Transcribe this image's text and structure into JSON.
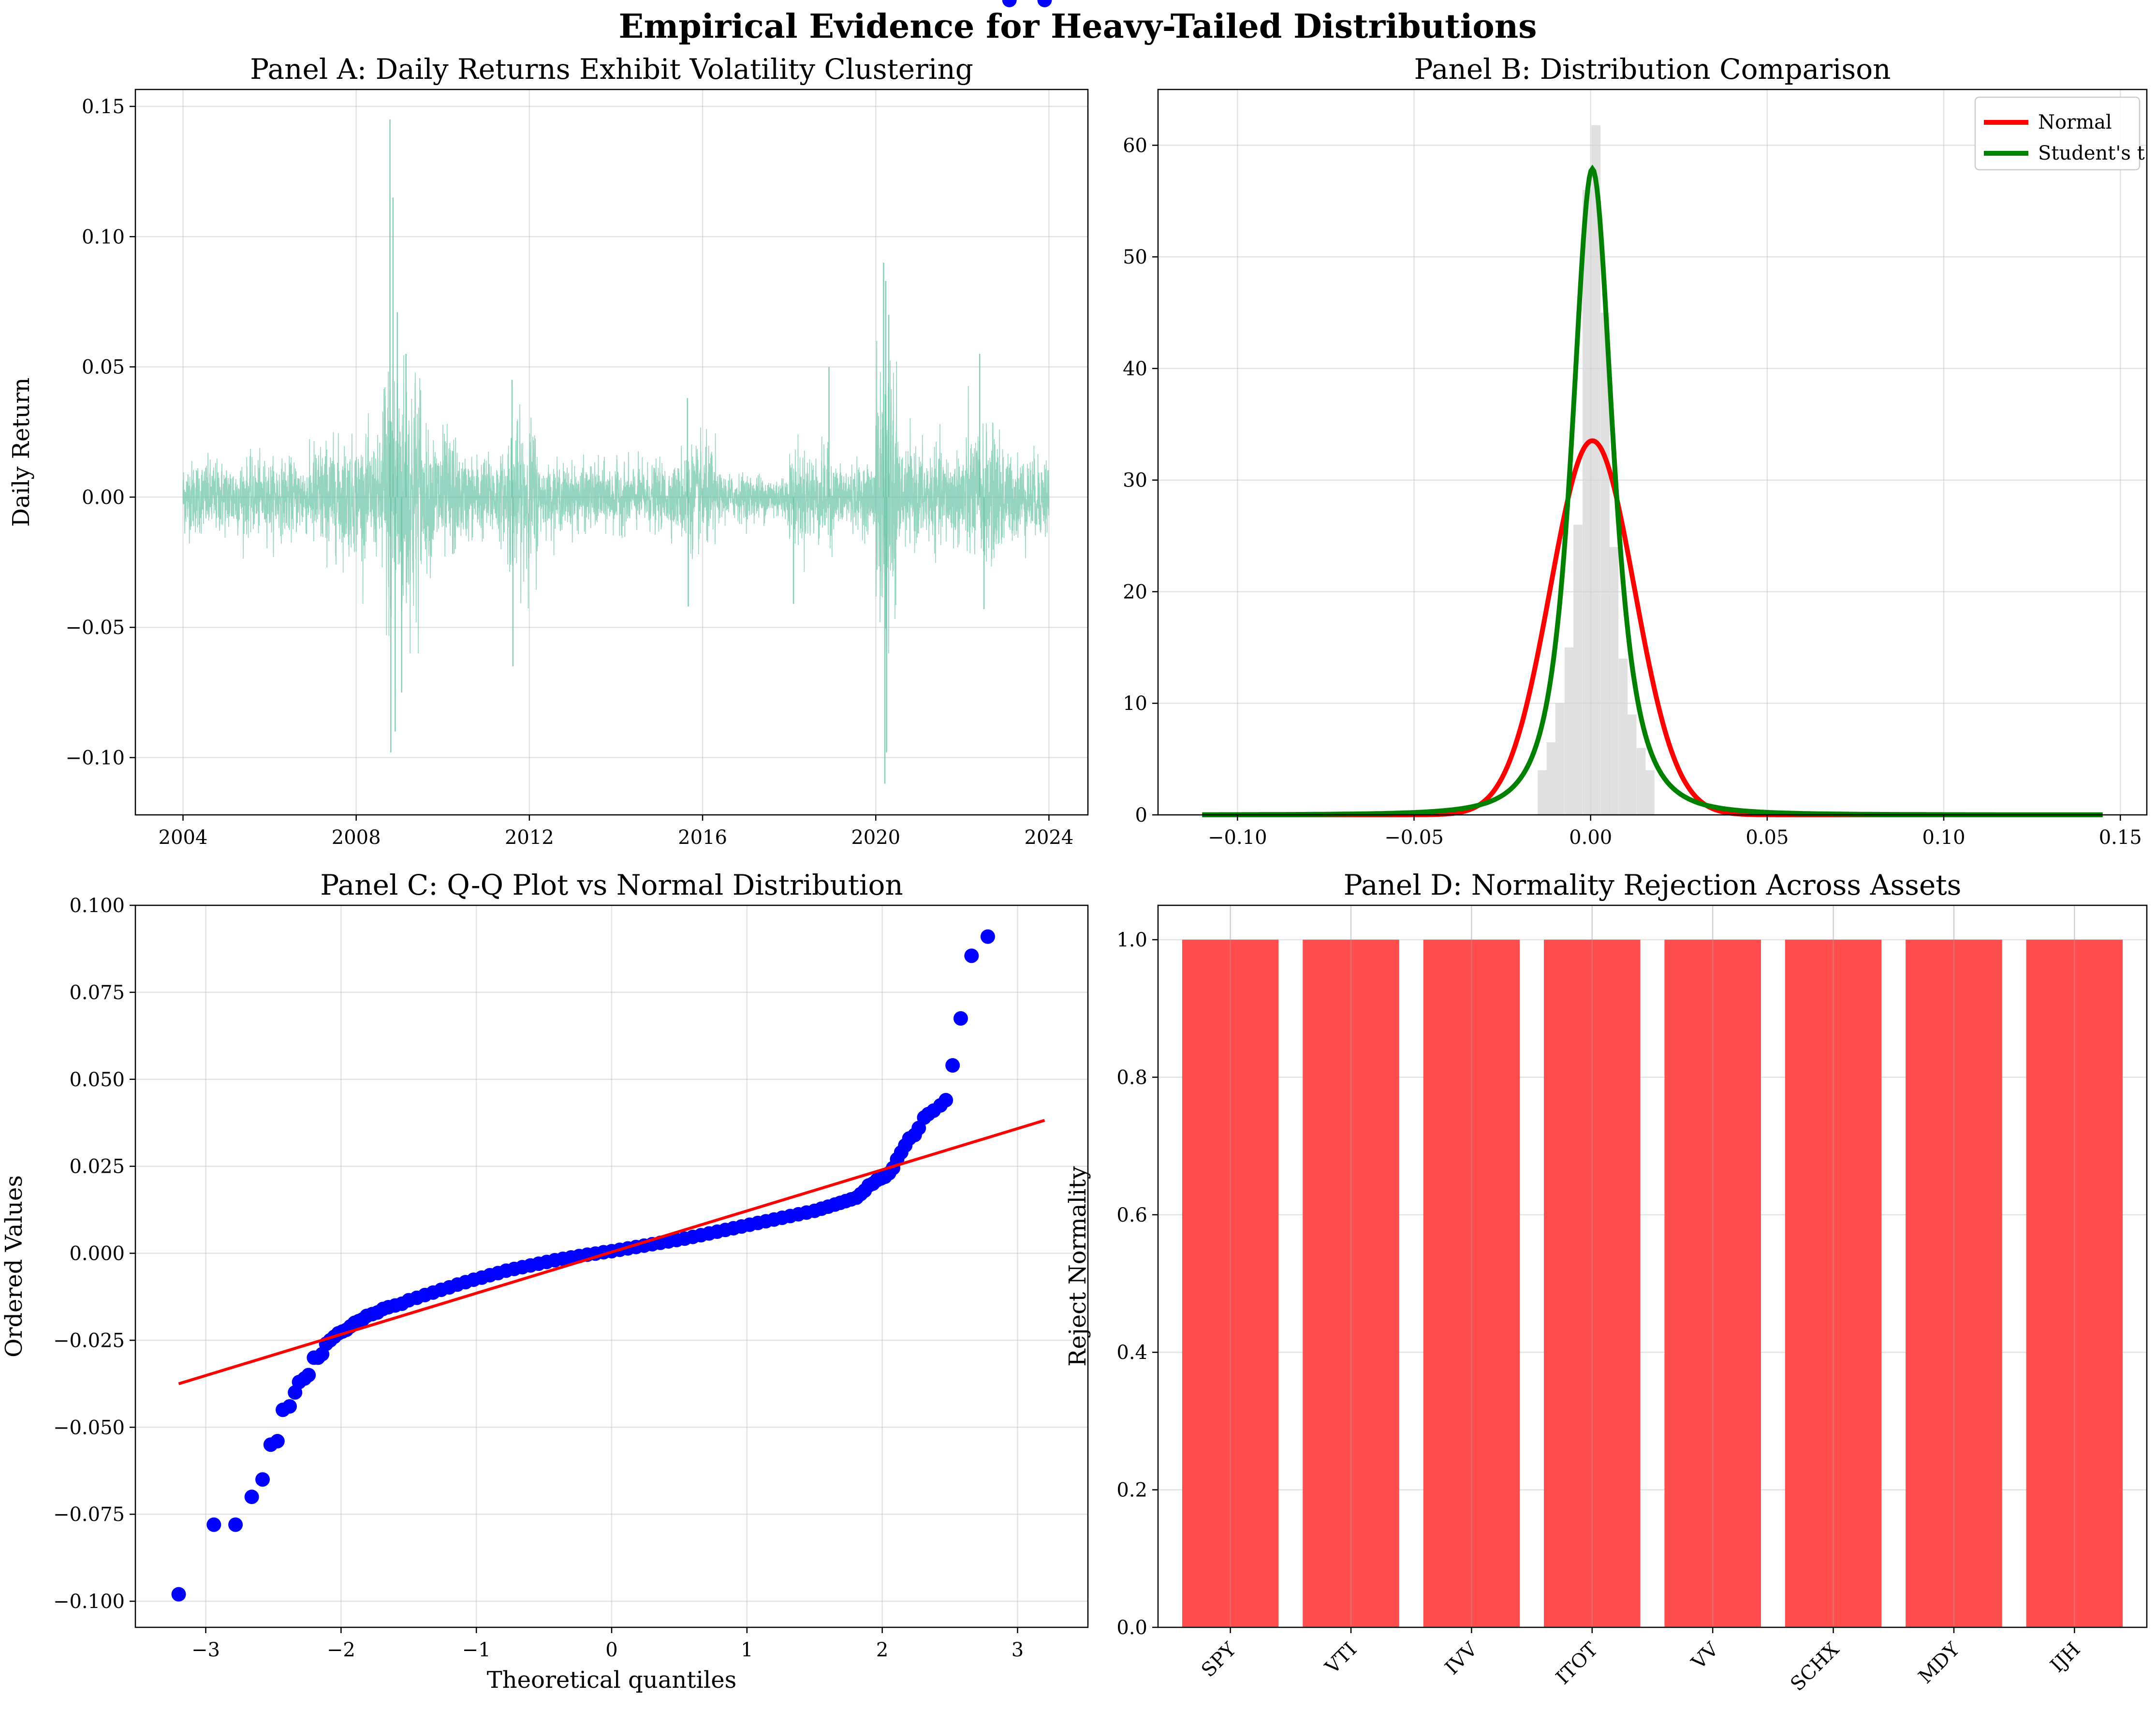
{
  "figure": {
    "title": "Empirical Evidence for Heavy-Tailed Distributions"
  },
  "chart_data": [
    {
      "panel": "A",
      "type": "line",
      "title": "Panel A: Daily Returns Exhibit Volatility Clustering",
      "xlabel": "",
      "ylabel": "Daily Return",
      "xlim": [
        2002.9,
        2024.9
      ],
      "ylim": [
        -0.122,
        0.1565
      ],
      "xticks": [
        2004,
        2008,
        2012,
        2016,
        2020,
        2024
      ],
      "xtick_labels": [
        "2004",
        "2008",
        "2012",
        "2016",
        "2020",
        "2024"
      ],
      "yticks": [
        -0.1,
        -0.05,
        0.0,
        0.05,
        0.1,
        0.15
      ],
      "ytick_labels": [
        "−0.10",
        "−0.05",
        "0.00",
        "0.05",
        "0.10",
        "0.15"
      ],
      "grid": true,
      "color": "#66c2a5",
      "x_range": [
        2004.0,
        2024.0
      ],
      "volatility_regimes": [
        {
          "from": 2004.0,
          "to": 2007.0,
          "vol": 0.008
        },
        {
          "from": 2007.0,
          "to": 2008.6,
          "vol": 0.012
        },
        {
          "from": 2008.6,
          "to": 2009.5,
          "vol": 0.03
        },
        {
          "from": 2009.5,
          "to": 2010.3,
          "vol": 0.014
        },
        {
          "from": 2010.3,
          "to": 2011.5,
          "vol": 0.009
        },
        {
          "from": 2011.5,
          "to": 2012.2,
          "vol": 0.016
        },
        {
          "from": 2012.2,
          "to": 2015.5,
          "vol": 0.007
        },
        {
          "from": 2015.5,
          "to": 2016.3,
          "vol": 0.011
        },
        {
          "from": 2016.3,
          "to": 2018.0,
          "vol": 0.005
        },
        {
          "from": 2018.0,
          "to": 2019.0,
          "vol": 0.01
        },
        {
          "from": 2019.0,
          "to": 2020.0,
          "vol": 0.007
        },
        {
          "from": 2020.0,
          "to": 2020.5,
          "vol": 0.03
        },
        {
          "from": 2020.5,
          "to": 2022.0,
          "vol": 0.01
        },
        {
          "from": 2022.0,
          "to": 2023.0,
          "vol": 0.014
        },
        {
          "from": 2023.0,
          "to": 2024.0,
          "vol": 0.009
        }
      ],
      "extremes": [
        {
          "x": 2008.78,
          "y": 0.145
        },
        {
          "x": 2008.8,
          "y": -0.098
        },
        {
          "x": 2008.85,
          "y": 0.115
        },
        {
          "x": 2008.9,
          "y": -0.09
        },
        {
          "x": 2008.95,
          "y": 0.071
        },
        {
          "x": 2009.05,
          "y": -0.075
        },
        {
          "x": 2009.15,
          "y": 0.055
        },
        {
          "x": 2011.6,
          "y": 0.045
        },
        {
          "x": 2011.62,
          "y": -0.065
        },
        {
          "x": 2015.65,
          "y": 0.038
        },
        {
          "x": 2015.67,
          "y": -0.042
        },
        {
          "x": 2018.1,
          "y": -0.041
        },
        {
          "x": 2018.92,
          "y": 0.05
        },
        {
          "x": 2020.18,
          "y": 0.09
        },
        {
          "x": 2020.21,
          "y": -0.11
        },
        {
          "x": 2020.23,
          "y": 0.083
        },
        {
          "x": 2020.25,
          "y": -0.098
        },
        {
          "x": 2020.3,
          "y": 0.07
        },
        {
          "x": 2022.4,
          "y": 0.055
        },
        {
          "x": 2022.5,
          "y": -0.043
        }
      ]
    },
    {
      "panel": "B",
      "type": "histogram",
      "title": "Panel B: Distribution Comparison",
      "xlabel": "",
      "ylabel": "",
      "xlim": [
        -0.1225,
        0.1575
      ],
      "ylim": [
        0,
        65
      ],
      "xticks": [
        -0.1,
        -0.05,
        0.0,
        0.05,
        0.1,
        0.15
      ],
      "xtick_labels": [
        "−0.10",
        "−0.05",
        "0.00",
        "0.05",
        "0.10",
        "0.15"
      ],
      "yticks": [
        0,
        10,
        20,
        30,
        40,
        50,
        60
      ],
      "ytick_labels": [
        "0",
        "10",
        "20",
        "30",
        "40",
        "50",
        "60"
      ],
      "grid": true,
      "legend_position": "top-right",
      "histogram": {
        "color": "#d3d3d3",
        "bin_width": 0.00255,
        "bins": [
          {
            "x": -0.0137,
            "density": 4.0
          },
          {
            "x": -0.0112,
            "density": 6.5
          },
          {
            "x": -0.0087,
            "density": 10.0
          },
          {
            "x": -0.0061,
            "density": 15.0
          },
          {
            "x": -0.0036,
            "density": 26.0
          },
          {
            "x": -0.001,
            "density": 56.0
          },
          {
            "x": 0.0015,
            "density": 61.8
          },
          {
            "x": 0.0041,
            "density": 45.0
          },
          {
            "x": 0.0066,
            "density": 24.0
          },
          {
            "x": 0.0092,
            "density": 14.0
          },
          {
            "x": 0.0117,
            "density": 9.0
          },
          {
            "x": 0.0143,
            "density": 6.0
          },
          {
            "x": 0.0168,
            "density": 4.0
          }
        ]
      },
      "series": [
        {
          "name": "Normal",
          "color": "#ff0000",
          "dist": "normal",
          "mu": 0.0005,
          "sigma": 0.0119
        },
        {
          "name": "Student's t",
          "color": "#008000",
          "dist": "t",
          "df": 2.3,
          "loc": 0.0005,
          "scale": 0.0062
        }
      ],
      "curve_x_range": [
        -0.11,
        0.145
      ]
    },
    {
      "panel": "C",
      "type": "scatter",
      "title": "Panel C: Q-Q Plot vs Normal Distribution",
      "xlabel": "Theoretical quantiles",
      "ylabel": "Ordered Values",
      "xlim": [
        -3.52,
        3.52
      ],
      "ylim": [
        -0.1075,
        0.1
      ],
      "xticks": [
        -3,
        -2,
        -1,
        0,
        1,
        2,
        3
      ],
      "xtick_labels": [
        "−3",
        "−2",
        "−1",
        "0",
        "1",
        "2",
        "3"
      ],
      "yticks": [
        -0.1,
        -0.075,
        -0.05,
        -0.025,
        0.0,
        0.025,
        0.05,
        0.075,
        0.1
      ],
      "ytick_labels": [
        "−0.100",
        "−0.075",
        "−0.050",
        "−0.025",
        "0.000",
        "0.025",
        "0.050",
        "0.075",
        "0.100"
      ],
      "grid": true,
      "point_color": "#0000ff",
      "line_color": "#ff0000",
      "fit_line": {
        "x": [
          -3.2,
          3.2
        ],
        "y": [
          -0.0375,
          0.0382
        ]
      },
      "points_x": [
        -3.2,
        -2.94,
        -2.78,
        -2.66,
        -2.58,
        -2.52,
        -2.47,
        -2.43,
        -2.38,
        -2.34,
        -2.31,
        -2.27,
        -2.24,
        -2.2,
        -2.17,
        -2.14,
        -2.11,
        -2.08,
        -2.05,
        -2.02,
        -1.99,
        -1.96,
        -1.93,
        -1.9,
        -1.87,
        -1.84,
        -1.81,
        -1.77,
        -1.73,
        -1.69,
        -1.65,
        -1.6,
        -1.55,
        -1.5,
        -1.44,
        -1.38,
        -1.32,
        -1.26,
        -1.2,
        -1.14,
        -1.08,
        -1.02,
        -0.96,
        -0.9,
        -0.84,
        -0.78,
        -0.72,
        -0.66,
        -0.6,
        -0.54,
        -0.48,
        -0.42,
        -0.36,
        -0.3,
        -0.24,
        -0.18,
        -0.12,
        -0.06,
        0.0,
        0.06,
        0.12,
        0.18,
        0.24,
        0.3,
        0.36,
        0.42,
        0.48,
        0.54,
        0.6,
        0.66,
        0.72,
        0.78,
        0.84,
        0.9,
        0.96,
        1.02,
        1.08,
        1.14,
        1.2,
        1.26,
        1.32,
        1.38,
        1.44,
        1.5,
        1.55,
        1.6,
        1.65,
        1.69,
        1.73,
        1.77,
        1.81,
        1.84,
        1.87,
        1.9,
        1.93,
        1.96,
        1.99,
        2.02,
        2.05,
        2.08,
        2.11,
        2.14,
        2.17,
        2.2,
        2.24,
        2.27,
        2.31,
        2.34,
        2.38,
        2.43,
        2.47,
        2.52,
        2.58,
        2.66,
        2.78,
        2.94,
        3.2
      ],
      "points_y": [
        -0.098,
        -0.078,
        -0.078,
        -0.07,
        -0.065,
        -0.055,
        -0.054,
        -0.045,
        -0.044,
        -0.04,
        -0.037,
        -0.036,
        -0.035,
        -0.03,
        -0.03,
        -0.029,
        -0.026,
        -0.025,
        -0.024,
        -0.023,
        -0.0225,
        -0.022,
        -0.021,
        -0.02,
        -0.0195,
        -0.019,
        -0.018,
        -0.0175,
        -0.017,
        -0.016,
        -0.0155,
        -0.015,
        -0.0145,
        -0.0135,
        -0.0128,
        -0.012,
        -0.0113,
        -0.0105,
        -0.0098,
        -0.009,
        -0.0083,
        -0.0076,
        -0.007,
        -0.0063,
        -0.0057,
        -0.005,
        -0.0045,
        -0.004,
        -0.0035,
        -0.003,
        -0.0025,
        -0.002,
        -0.0016,
        -0.0012,
        -0.0008,
        -0.0004,
        -0.0001,
        0.0003,
        0.0006,
        0.001,
        0.0014,
        0.0018,
        0.0022,
        0.0026,
        0.003,
        0.0034,
        0.0038,
        0.0042,
        0.0047,
        0.0052,
        0.0057,
        0.0062,
        0.0067,
        0.0072,
        0.0077,
        0.0082,
        0.0087,
        0.0092,
        0.0097,
        0.0102,
        0.0107,
        0.0112,
        0.0117,
        0.0122,
        0.0128,
        0.0134,
        0.014,
        0.0145,
        0.015,
        0.0155,
        0.016,
        0.017,
        0.018,
        0.0195,
        0.02,
        0.021,
        0.0215,
        0.022,
        0.023,
        0.0245,
        0.027,
        0.029,
        0.031,
        0.033,
        0.034,
        0.036,
        0.039,
        0.04,
        0.041,
        0.0425,
        0.044,
        0.054,
        0.0675,
        0.0855,
        0.091
      ]
    },
    {
      "panel": "D",
      "type": "bar",
      "title": "Panel D: Normality Rejection Across Assets",
      "xlabel": "",
      "ylabel": "Reject Normality",
      "ylim": [
        0,
        1.05
      ],
      "yticks": [
        0.0,
        0.2,
        0.4,
        0.6,
        0.8,
        1.0
      ],
      "ytick_labels": [
        "0.0",
        "0.2",
        "0.4",
        "0.6",
        "0.8",
        "1.0"
      ],
      "grid": true,
      "color": "#ff4c4c",
      "categories": [
        "SPY",
        "VTI",
        "IVV",
        "ITOT",
        "VV",
        "SCHX",
        "MDY",
        "IJH"
      ],
      "values": [
        1,
        1,
        1,
        1,
        1,
        1,
        1,
        1
      ]
    }
  ]
}
